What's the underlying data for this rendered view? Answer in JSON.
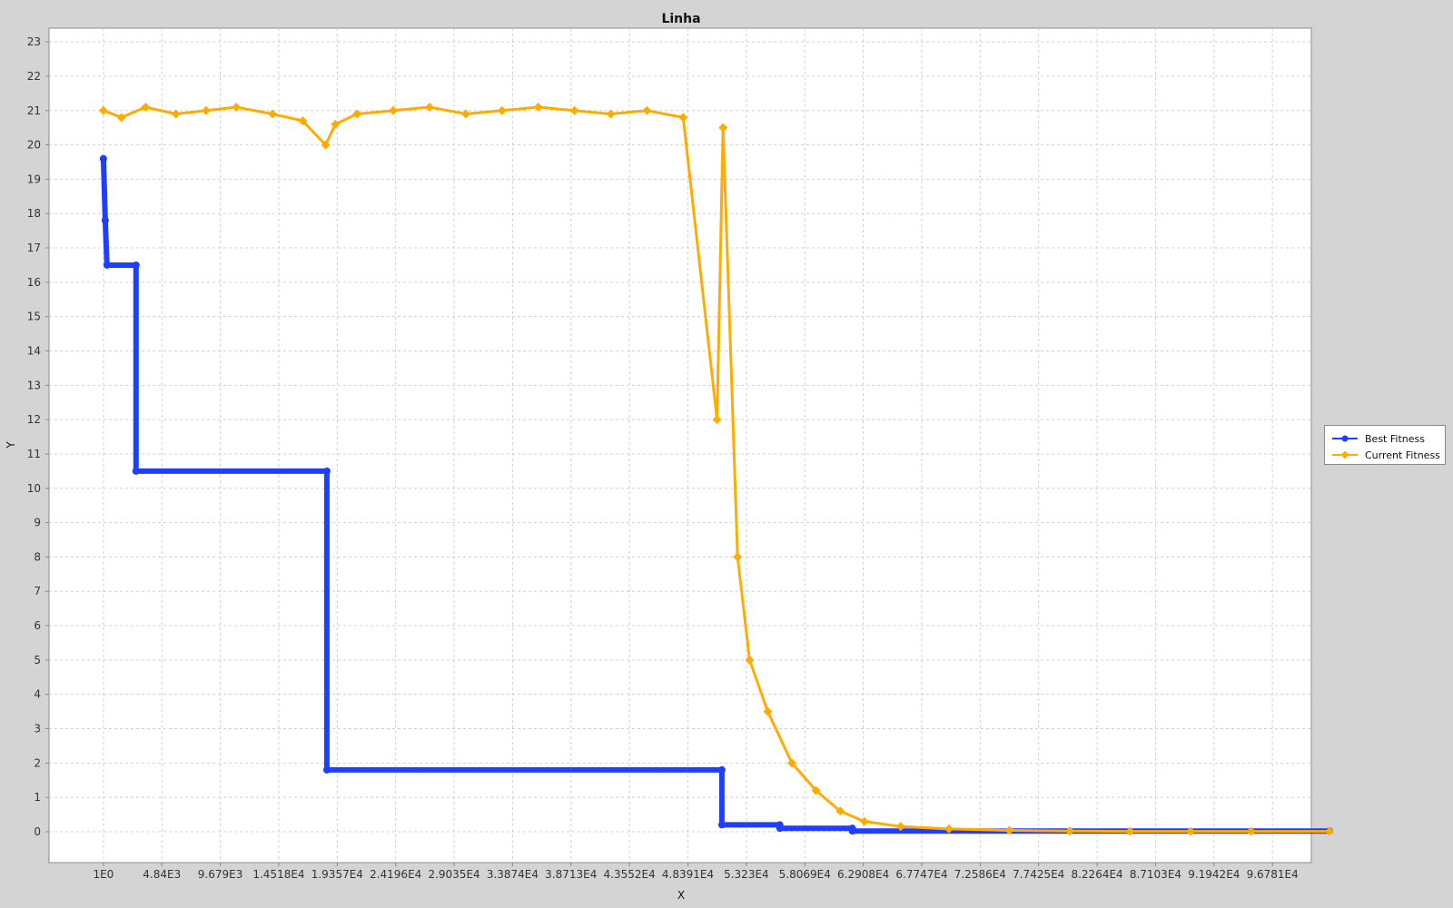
{
  "chart_data": {
    "type": "line",
    "title": "Linha",
    "xlabel": "X",
    "ylabel": "Y",
    "xlim": [
      -4500,
      100000
    ],
    "ylim": [
      -0.9,
      23.4
    ],
    "y_ticks": [
      0,
      1,
      2,
      3,
      4,
      5,
      6,
      7,
      8,
      9,
      10,
      11,
      12,
      13,
      14,
      15,
      16,
      17,
      18,
      19,
      20,
      21,
      22,
      23
    ],
    "x_ticks": [
      {
        "value": 1,
        "label": "1E0"
      },
      {
        "value": 4840,
        "label": "4.84E3"
      },
      {
        "value": 9679,
        "label": "9.679E3"
      },
      {
        "value": 14518,
        "label": "1.4518E4"
      },
      {
        "value": 19357,
        "label": "1.9357E4"
      },
      {
        "value": 24196,
        "label": "2.4196E4"
      },
      {
        "value": 29035,
        "label": "2.9035E4"
      },
      {
        "value": 33874,
        "label": "3.3874E4"
      },
      {
        "value": 38713,
        "label": "3.8713E4"
      },
      {
        "value": 43552,
        "label": "4.3552E4"
      },
      {
        "value": 48391,
        "label": "4.8391E4"
      },
      {
        "value": 53230,
        "label": "5.323E4"
      },
      {
        "value": 58069,
        "label": "5.8069E4"
      },
      {
        "value": 62908,
        "label": "6.2908E4"
      },
      {
        "value": 67747,
        "label": "6.7747E4"
      },
      {
        "value": 72586,
        "label": "7.2586E4"
      },
      {
        "value": 77425,
        "label": "7.7425E4"
      },
      {
        "value": 82264,
        "label": "8.2264E4"
      },
      {
        "value": 87103,
        "label": "8.7103E4"
      },
      {
        "value": 91942,
        "label": "9.1942E4"
      },
      {
        "value": 96781,
        "label": "9.6781E4"
      }
    ],
    "grid": true,
    "legend_position": "right",
    "series": [
      {
        "name": "Best Fitness",
        "color": "#1f3fff",
        "marker": "circle",
        "x": [
          1,
          150,
          300,
          2700,
          2700,
          18500,
          18500,
          51200,
          51200,
          56000,
          56000,
          62000,
          62000,
          101500
        ],
        "y": [
          19.6,
          17.8,
          16.5,
          16.5,
          10.5,
          10.5,
          1.8,
          1.8,
          0.2,
          0.2,
          0.1,
          0.1,
          0.02,
          0.02
        ]
      },
      {
        "name": "Current Fitness",
        "color": "#ffab00",
        "marker": "diamond",
        "x": [
          1,
          1500,
          3500,
          6000,
          8500,
          11000,
          14000,
          16500,
          18400,
          19200,
          21000,
          24000,
          27000,
          30000,
          33000,
          36000,
          39000,
          42000,
          45000,
          48000,
          50800,
          51300,
          52500,
          53500,
          55000,
          57000,
          59000,
          61000,
          63000,
          66000,
          70000,
          75000,
          80000,
          85000,
          90000,
          95000,
          101500
        ],
        "y": [
          21.0,
          20.8,
          21.1,
          20.9,
          21.0,
          21.1,
          20.9,
          20.7,
          20.0,
          20.6,
          20.9,
          21.0,
          21.1,
          20.9,
          21.0,
          21.1,
          21.0,
          20.9,
          21.0,
          20.8,
          12.0,
          20.5,
          8.0,
          5.0,
          3.5,
          2.0,
          1.2,
          0.6,
          0.3,
          0.15,
          0.08,
          0.04,
          0.02,
          0.01,
          0.01,
          0.01,
          0.01
        ]
      }
    ]
  }
}
